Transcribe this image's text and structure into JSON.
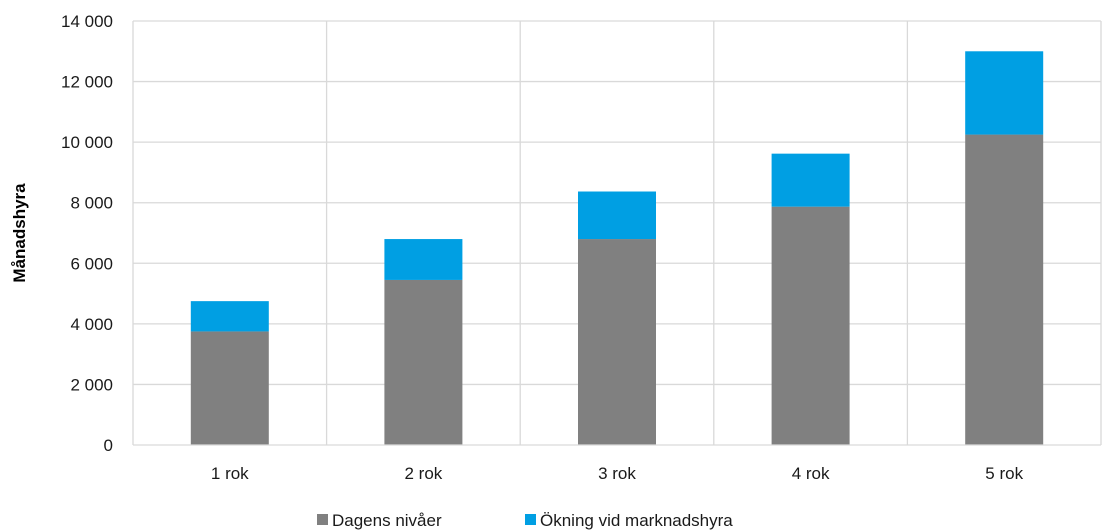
{
  "chart_data": {
    "type": "bar",
    "stacked": true,
    "categories": [
      "1 rok",
      "2 rok",
      "3 rok",
      "4 rok",
      "5 rok"
    ],
    "series": [
      {
        "name": "Dagens nivåer",
        "values": [
          3750,
          5450,
          6800,
          7870,
          10250
        ],
        "color": "#808080"
      },
      {
        "name": "Ökning vid marknadshyra",
        "values": [
          1000,
          1350,
          1570,
          1750,
          2750
        ],
        "color": "#009fe3"
      }
    ],
    "ylabel": "Månadshyra",
    "xlabel": "",
    "ylim": [
      0,
      14000
    ],
    "yticks": [
      0,
      2000,
      4000,
      6000,
      8000,
      10000,
      12000,
      14000
    ],
    "ytick_labels": [
      "0",
      "2 000",
      "4 000",
      "6 000",
      "8 000",
      "10 000",
      "12 000",
      "14 000"
    ],
    "grid": true,
    "legend_position": "bottom"
  }
}
